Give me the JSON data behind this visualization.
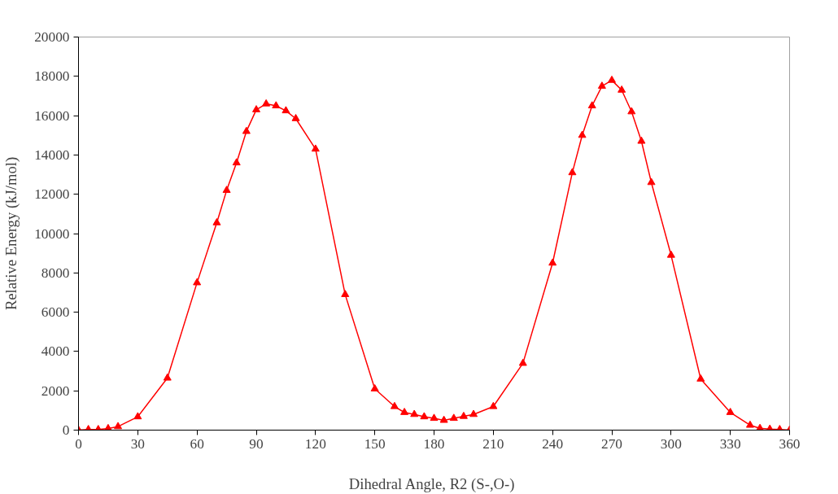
{
  "chart_data": {
    "type": "line",
    "xlabel": "Dihedral Angle,  R2 (S-,O-)",
    "ylabel": "Relative Energy (kJ/mol)",
    "x": [
      0,
      5,
      10,
      15,
      20,
      30,
      45,
      60,
      70,
      75,
      80,
      85,
      90,
      95,
      100,
      105,
      110,
      120,
      135,
      150,
      160,
      165,
      170,
      175,
      180,
      185,
      190,
      195,
      200,
      210,
      225,
      240,
      250,
      255,
      260,
      265,
      270,
      275,
      280,
      285,
      290,
      300,
      315,
      330,
      340,
      345,
      350,
      355,
      360
    ],
    "series": [
      {
        "color": "#ff0000",
        "values": [
          0,
          30,
          30,
          80,
          180,
          680,
          2650,
          7500,
          10550,
          12200,
          13600,
          15200,
          16300,
          16600,
          16500,
          16250,
          15850,
          14300,
          6900,
          2100,
          1200,
          900,
          800,
          680,
          600,
          500,
          600,
          700,
          800,
          1200,
          3400,
          8500,
          13100,
          15000,
          16500,
          17500,
          17800,
          17300,
          16200,
          14700,
          12600,
          8900,
          2600,
          900,
          250,
          90,
          50,
          30,
          0
        ]
      }
    ],
    "marker": "triangle",
    "line_style": "solid",
    "xlim": [
      0,
      360
    ],
    "xticks": [
      0,
      30,
      60,
      90,
      120,
      150,
      180,
      210,
      240,
      270,
      300,
      330,
      360
    ],
    "ylim": [
      0,
      20000
    ],
    "yticks": [
      0,
      2000,
      4000,
      6000,
      8000,
      10000,
      12000,
      14000,
      16000,
      18000,
      20000
    ],
    "grid": false
  }
}
